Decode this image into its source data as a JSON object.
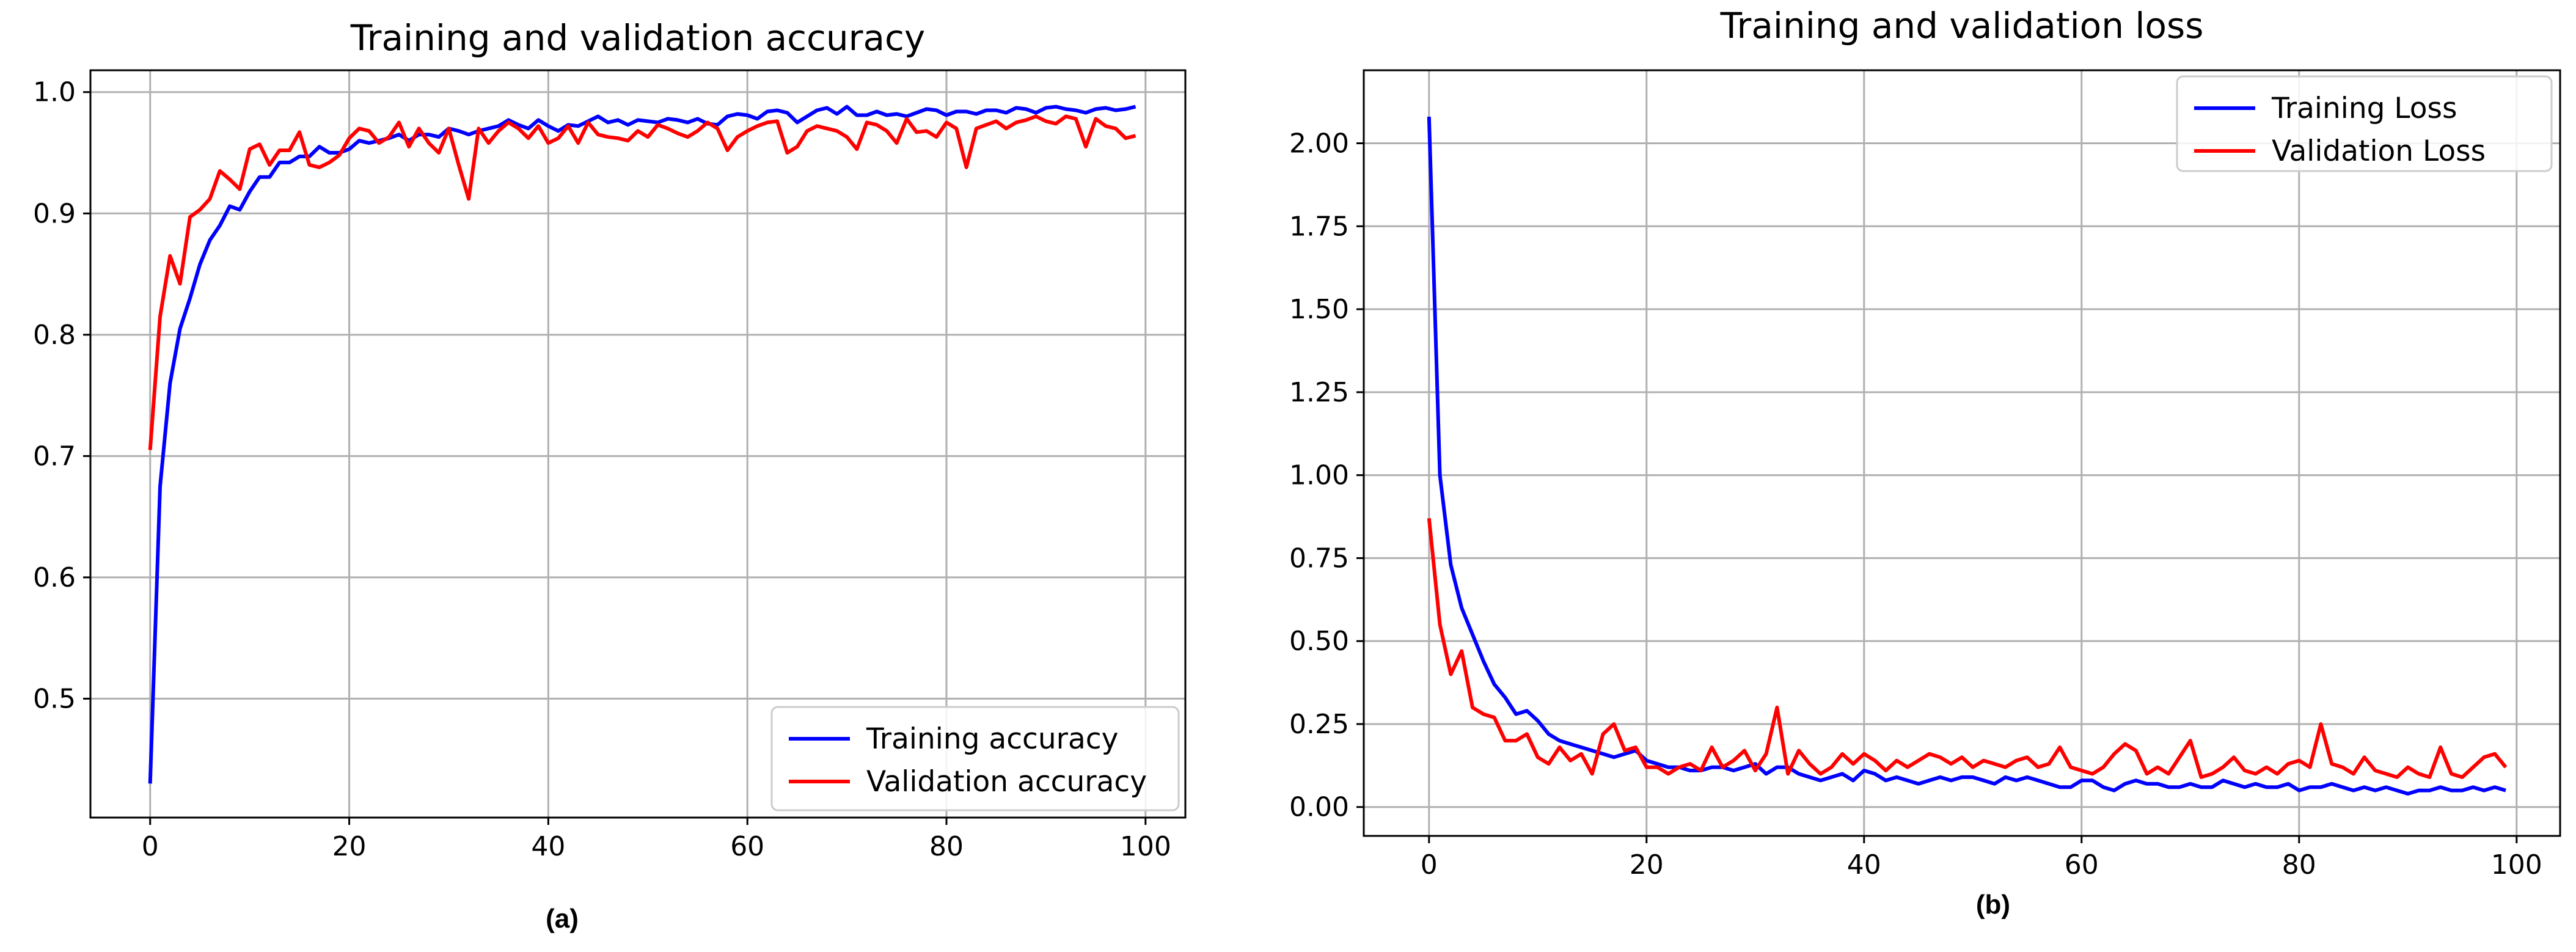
{
  "chart_data": [
    {
      "type": "line",
      "title": "Training and validation accuracy",
      "panel_label": "(a)",
      "xlim": [
        -6,
        104
      ],
      "ylim": [
        0.402,
        1.018
      ],
      "xticks": [
        0,
        20,
        40,
        60,
        80,
        100
      ],
      "xtick_labels": [
        "0",
        "20",
        "40",
        "60",
        "80",
        "100"
      ],
      "yticks": [
        0.5,
        0.6,
        0.7,
        0.8,
        0.9,
        1.0
      ],
      "ytick_labels": [
        "0.5",
        "0.6",
        "0.7",
        "0.8",
        "0.9",
        "1.0"
      ],
      "grid": true,
      "legend_position": "bottom-right",
      "series": [
        {
          "name": "Training accuracy",
          "color": "#0000ff",
          "values": [
            0.43,
            0.675,
            0.76,
            0.805,
            0.83,
            0.858,
            0.878,
            0.89,
            0.906,
            0.903,
            0.918,
            0.93,
            0.93,
            0.942,
            0.942,
            0.947,
            0.947,
            0.955,
            0.95,
            0.95,
            0.953,
            0.96,
            0.958,
            0.96,
            0.962,
            0.965,
            0.96,
            0.965,
            0.965,
            0.963,
            0.97,
            0.968,
            0.965,
            0.968,
            0.97,
            0.972,
            0.977,
            0.973,
            0.97,
            0.977,
            0.972,
            0.968,
            0.973,
            0.972,
            0.976,
            0.98,
            0.975,
            0.977,
            0.973,
            0.977,
            0.976,
            0.975,
            0.978,
            0.977,
            0.975,
            0.978,
            0.974,
            0.973,
            0.98,
            0.982,
            0.981,
            0.978,
            0.984,
            0.985,
            0.983,
            0.975,
            0.98,
            0.985,
            0.987,
            0.982,
            0.988,
            0.981,
            0.981,
            0.984,
            0.981,
            0.982,
            0.98,
            0.983,
            0.986,
            0.985,
            0.981,
            0.984,
            0.984,
            0.982,
            0.985,
            0.985,
            0.983,
            0.987,
            0.986,
            0.983,
            0.987,
            0.988,
            0.986,
            0.985,
            0.983,
            0.986,
            0.987,
            0.985,
            0.986,
            0.988
          ]
        },
        {
          "name": "Validation accuracy",
          "color": "#ff0000",
          "values": [
            0.705,
            0.815,
            0.865,
            0.842,
            0.897,
            0.903,
            0.912,
            0.935,
            0.928,
            0.92,
            0.953,
            0.957,
            0.94,
            0.952,
            0.952,
            0.967,
            0.94,
            0.938,
            0.942,
            0.948,
            0.962,
            0.97,
            0.968,
            0.958,
            0.963,
            0.975,
            0.955,
            0.97,
            0.958,
            0.95,
            0.97,
            0.94,
            0.912,
            0.97,
            0.958,
            0.968,
            0.975,
            0.97,
            0.962,
            0.972,
            0.958,
            0.962,
            0.972,
            0.958,
            0.975,
            0.965,
            0.963,
            0.962,
            0.96,
            0.968,
            0.963,
            0.973,
            0.97,
            0.966,
            0.963,
            0.968,
            0.975,
            0.97,
            0.952,
            0.963,
            0.968,
            0.972,
            0.975,
            0.976,
            0.95,
            0.955,
            0.968,
            0.972,
            0.97,
            0.968,
            0.963,
            0.953,
            0.975,
            0.973,
            0.968,
            0.958,
            0.978,
            0.967,
            0.968,
            0.963,
            0.975,
            0.97,
            0.938,
            0.97,
            0.973,
            0.976,
            0.97,
            0.975,
            0.977,
            0.98,
            0.976,
            0.974,
            0.98,
            0.978,
            0.955,
            0.978,
            0.972,
            0.97,
            0.962,
            0.964
          ]
        }
      ]
    },
    {
      "type": "line",
      "title": "Training and validation loss",
      "panel_label": "(b)",
      "xlim": [
        -6,
        104
      ],
      "ylim": [
        -0.087,
        2.22
      ],
      "xticks": [
        0,
        20,
        40,
        60,
        80,
        100
      ],
      "xtick_labels": [
        "0",
        "20",
        "40",
        "60",
        "80",
        "100"
      ],
      "yticks": [
        0.0,
        0.25,
        0.5,
        0.75,
        1.0,
        1.25,
        1.5,
        1.75,
        2.0
      ],
      "ytick_labels": [
        "0.00",
        "0.25",
        "0.50",
        "0.75",
        "1.00",
        "1.25",
        "1.50",
        "1.75",
        "2.00"
      ],
      "grid": true,
      "legend_position": "top-right",
      "series": [
        {
          "name": "Training Loss",
          "color": "#0000ff",
          "values": [
            2.08,
            1.0,
            0.73,
            0.6,
            0.52,
            0.44,
            0.37,
            0.33,
            0.28,
            0.29,
            0.26,
            0.22,
            0.2,
            0.19,
            0.18,
            0.17,
            0.16,
            0.15,
            0.16,
            0.17,
            0.14,
            0.13,
            0.12,
            0.12,
            0.11,
            0.11,
            0.12,
            0.12,
            0.11,
            0.12,
            0.13,
            0.1,
            0.12,
            0.12,
            0.1,
            0.09,
            0.08,
            0.09,
            0.1,
            0.08,
            0.11,
            0.1,
            0.08,
            0.09,
            0.08,
            0.07,
            0.08,
            0.09,
            0.08,
            0.09,
            0.09,
            0.08,
            0.07,
            0.09,
            0.08,
            0.09,
            0.08,
            0.07,
            0.06,
            0.06,
            0.08,
            0.08,
            0.06,
            0.05,
            0.07,
            0.08,
            0.07,
            0.07,
            0.06,
            0.06,
            0.07,
            0.06,
            0.06,
            0.08,
            0.07,
            0.06,
            0.07,
            0.06,
            0.06,
            0.07,
            0.05,
            0.06,
            0.06,
            0.07,
            0.06,
            0.05,
            0.06,
            0.05,
            0.06,
            0.05,
            0.04,
            0.05,
            0.05,
            0.06,
            0.05,
            0.05,
            0.06,
            0.05,
            0.06,
            0.05
          ]
        },
        {
          "name": "Validation Loss",
          "color": "#ff0000",
          "values": [
            0.87,
            0.55,
            0.4,
            0.47,
            0.3,
            0.28,
            0.27,
            0.2,
            0.2,
            0.22,
            0.15,
            0.13,
            0.18,
            0.14,
            0.16,
            0.1,
            0.22,
            0.25,
            0.17,
            0.18,
            0.12,
            0.12,
            0.1,
            0.12,
            0.13,
            0.11,
            0.18,
            0.12,
            0.14,
            0.17,
            0.11,
            0.16,
            0.3,
            0.1,
            0.17,
            0.13,
            0.1,
            0.12,
            0.16,
            0.13,
            0.16,
            0.14,
            0.11,
            0.14,
            0.12,
            0.14,
            0.16,
            0.15,
            0.13,
            0.15,
            0.12,
            0.14,
            0.13,
            0.12,
            0.14,
            0.15,
            0.12,
            0.13,
            0.18,
            0.12,
            0.11,
            0.1,
            0.12,
            0.16,
            0.19,
            0.17,
            0.1,
            0.12,
            0.1,
            0.15,
            0.2,
            0.09,
            0.1,
            0.12,
            0.15,
            0.11,
            0.1,
            0.12,
            0.1,
            0.13,
            0.14,
            0.12,
            0.25,
            0.13,
            0.12,
            0.1,
            0.15,
            0.11,
            0.1,
            0.09,
            0.12,
            0.1,
            0.09,
            0.18,
            0.1,
            0.09,
            0.12,
            0.15,
            0.16,
            0.12
          ]
        }
      ]
    }
  ]
}
